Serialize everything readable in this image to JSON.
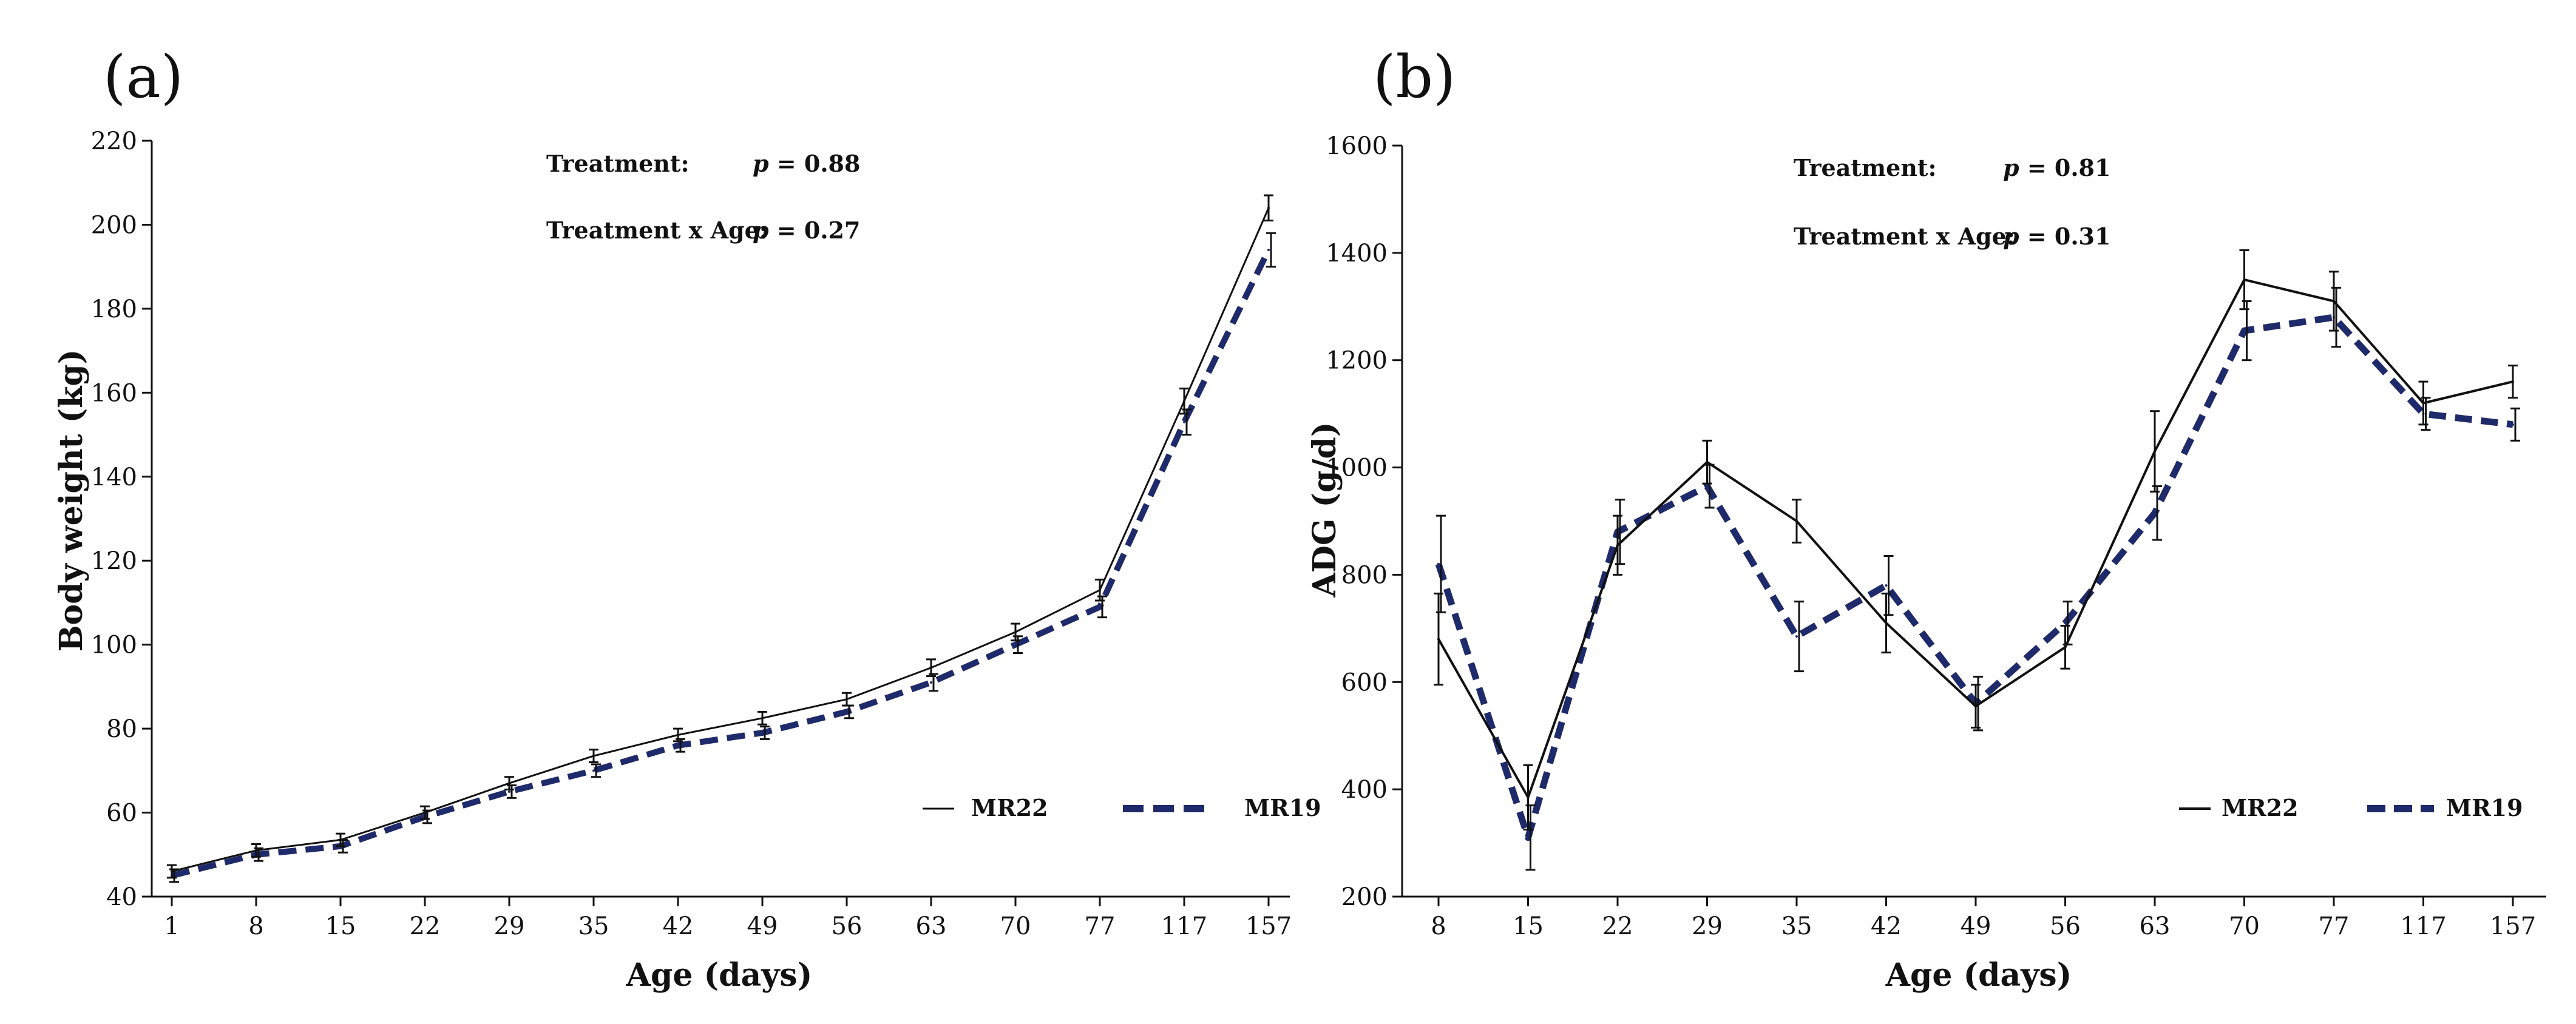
{
  "chart_data": [
    {
      "type": "line",
      "panel_label": "(a)",
      "categories": [
        "1",
        "8",
        "15",
        "22",
        "29",
        "35",
        "42",
        "49",
        "56",
        "63",
        "70",
        "77",
        "117",
        "157"
      ],
      "series": [
        {
          "name": "MR22",
          "values": [
            46,
            51,
            53.5,
            60,
            67,
            73.5,
            78.5,
            82.5,
            87,
            94.5,
            103,
            113,
            158,
            204
          ],
          "errors": [
            1.5,
            1.5,
            1.5,
            1.5,
            1.5,
            1.5,
            1.5,
            1.5,
            1.5,
            2,
            2,
            2.5,
            3,
            3
          ]
        },
        {
          "name": "MR19",
          "values": [
            45,
            50,
            52,
            59,
            65,
            70,
            76,
            79,
            84,
            91,
            100,
            109,
            153,
            194
          ],
          "errors": [
            1.5,
            1.5,
            1.5,
            1.5,
            1.5,
            1.5,
            1.5,
            1.5,
            1.5,
            2,
            2,
            2.5,
            3,
            4
          ]
        }
      ],
      "title": "",
      "xlabel": "Age (days)",
      "ylabel": "Body weight (kg)",
      "ylim": [
        40,
        220
      ],
      "yticks": [
        40,
        60,
        80,
        100,
        120,
        140,
        160,
        180,
        200,
        220
      ],
      "annotations": {
        "treatment_label": "Treatment:",
        "treatment_p": "p = 0.88",
        "interaction_label": "Treatment x Age:",
        "interaction_p": "p = 0.27"
      },
      "legend_position": "bottom-right",
      "grid": false
    },
    {
      "type": "line",
      "panel_label": "(b)",
      "categories": [
        "8",
        "15",
        "22",
        "29",
        "35",
        "42",
        "49",
        "56",
        "63",
        "70",
        "77",
        "117",
        "157"
      ],
      "series": [
        {
          "name": "MR22",
          "values": [
            680,
            385,
            855,
            1010,
            900,
            710,
            555,
            665,
            1030,
            1350,
            1310,
            1120,
            1160
          ],
          "errors": [
            85,
            60,
            55,
            40,
            40,
            55,
            40,
            40,
            75,
            55,
            55,
            40,
            30
          ]
        },
        {
          "name": "MR19",
          "values": [
            820,
            310,
            880,
            965,
            685,
            780,
            560,
            710,
            915,
            1255,
            1280,
            1100,
            1080
          ],
          "errors": [
            90,
            60,
            60,
            40,
            65,
            55,
            50,
            40,
            50,
            55,
            55,
            30,
            30
          ]
        }
      ],
      "title": "",
      "xlabel": "Age (days)",
      "ylabel": "ADG (g/d)",
      "ylim": [
        200,
        1600
      ],
      "yticks": [
        200,
        400,
        600,
        800,
        1000,
        1200,
        1400,
        1600
      ],
      "annotations": {
        "treatment_label": "Treatment:",
        "treatment_p": "p = 0.81",
        "interaction_label": "Treatment x Age:",
        "interaction_p": "p = 0.31"
      },
      "legend_position": "bottom-right",
      "grid": false
    }
  ],
  "colors": {
    "MR22": "#111111",
    "MR19": "#1f2a6b",
    "axis": "#111111"
  }
}
